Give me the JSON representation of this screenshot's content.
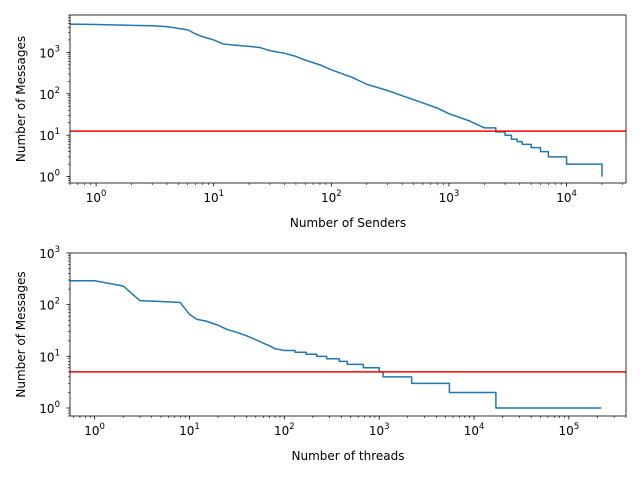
{
  "chart_data": [
    {
      "type": "line",
      "title": "",
      "xlabel": "Number of Senders",
      "ylabel": "Number of Messages",
      "xscale": "log",
      "yscale": "log",
      "xlim": [
        0.6,
        32000
      ],
      "ylim": [
        0.7,
        8000
      ],
      "xticks": [
        {
          "value": 1,
          "base": "10",
          "exp": "0"
        },
        {
          "value": 10,
          "base": "10",
          "exp": "1"
        },
        {
          "value": 100,
          "base": "10",
          "exp": "2"
        },
        {
          "value": 1000,
          "base": "10",
          "exp": "3"
        },
        {
          "value": 10000,
          "base": "10",
          "exp": "4"
        }
      ],
      "yticks": [
        {
          "value": 1,
          "base": "10",
          "exp": "0"
        },
        {
          "value": 10,
          "base": "10",
          "exp": "1"
        },
        {
          "value": 100,
          "base": "10",
          "exp": "2"
        },
        {
          "value": 1000,
          "base": "10",
          "exp": "3"
        }
      ],
      "series": [
        {
          "color": "#1f77b4",
          "x": [
            0.6,
            1,
            2,
            3,
            4,
            5,
            6,
            7,
            8,
            10,
            12,
            15,
            20,
            25,
            30,
            40,
            50,
            60,
            80,
            100,
            150,
            200,
            300,
            400,
            600,
            800,
            1000,
            1500,
            2000
          ],
          "y": [
            4800,
            4700,
            4500,
            4400,
            4200,
            3800,
            3500,
            2800,
            2400,
            2000,
            1600,
            1500,
            1400,
            1300,
            1100,
            950,
            800,
            650,
            500,
            380,
            250,
            170,
            120,
            90,
            60,
            45,
            33,
            22,
            15
          ],
          "steps": [
            {
              "x": 2000,
              "y": 15
            },
            {
              "x": 2500,
              "y": 12
            },
            {
              "x": 3000,
              "y": 10
            },
            {
              "x": 3400,
              "y": 8
            },
            {
              "x": 3800,
              "y": 7
            },
            {
              "x": 4200,
              "y": 6
            },
            {
              "x": 5000,
              "y": 5
            },
            {
              "x": 6000,
              "y": 4
            },
            {
              "x": 7000,
              "y": 3
            },
            {
              "x": 10000,
              "y": 2
            },
            {
              "x": 20000,
              "y": 1
            }
          ]
        }
      ],
      "hline": {
        "y": 12.5,
        "color": "#ff0000"
      }
    },
    {
      "type": "line",
      "title": "",
      "xlabel": "Number of threads",
      "ylabel": "Number of Messages",
      "xscale": "log",
      "yscale": "log",
      "xlim": [
        0.55,
        400000
      ],
      "ylim": [
        0.7,
        1000
      ],
      "xticks": [
        {
          "value": 1,
          "base": "10",
          "exp": "0"
        },
        {
          "value": 10,
          "base": "10",
          "exp": "1"
        },
        {
          "value": 100,
          "base": "10",
          "exp": "2"
        },
        {
          "value": 1000,
          "base": "10",
          "exp": "3"
        },
        {
          "value": 10000,
          "base": "10",
          "exp": "4"
        },
        {
          "value": 100000,
          "base": "10",
          "exp": "5"
        }
      ],
      "yticks": [
        {
          "value": 1,
          "base": "10",
          "exp": "0"
        },
        {
          "value": 10,
          "base": "10",
          "exp": "1"
        },
        {
          "value": 100,
          "base": "10",
          "exp": "2"
        },
        {
          "value": 1000,
          "base": "10",
          "exp": "3"
        }
      ],
      "series": [
        {
          "color": "#1f77b4",
          "x": [
            0.55,
            1,
            2,
            3,
            5,
            8,
            10,
            12,
            15,
            20,
            25,
            30,
            40,
            50,
            60,
            70,
            80,
            100
          ],
          "y": [
            290,
            290,
            230,
            120,
            115,
            110,
            65,
            52,
            48,
            40,
            33,
            30,
            25,
            21,
            18,
            16,
            14,
            13
          ],
          "steps": [
            {
              "x": 100,
              "y": 13
            },
            {
              "x": 130,
              "y": 12
            },
            {
              "x": 170,
              "y": 11
            },
            {
              "x": 220,
              "y": 10
            },
            {
              "x": 280,
              "y": 9
            },
            {
              "x": 380,
              "y": 8
            },
            {
              "x": 460,
              "y": 7
            },
            {
              "x": 680,
              "y": 6
            },
            {
              "x": 1000,
              "y": 5
            },
            {
              "x": 1100,
              "y": 4
            },
            {
              "x": 2200,
              "y": 3
            },
            {
              "x": 5500,
              "y": 2
            },
            {
              "x": 17000,
              "y": 1
            },
            {
              "x": 220000,
              "y": 1
            }
          ]
        }
      ],
      "hline": {
        "y": 5,
        "color": "#ff0000"
      }
    }
  ]
}
